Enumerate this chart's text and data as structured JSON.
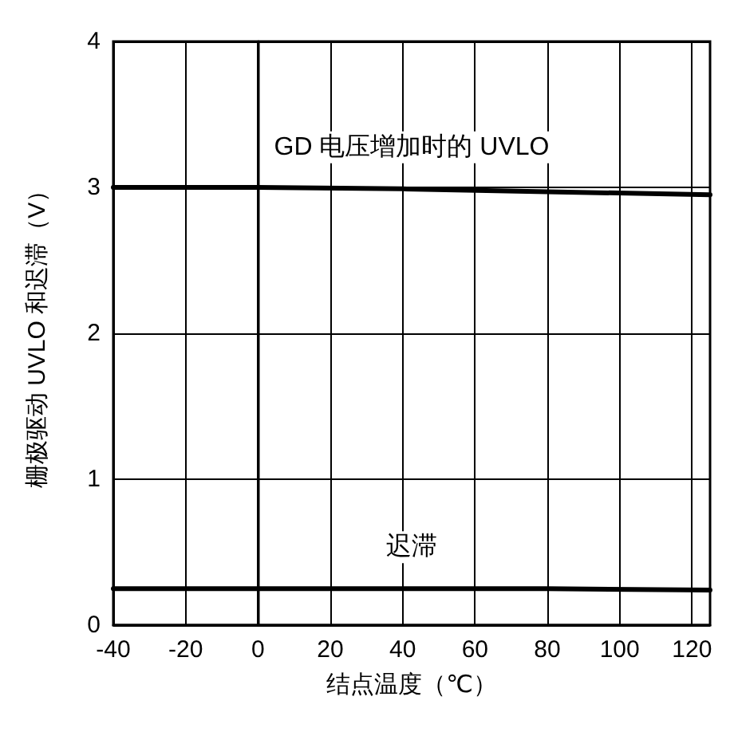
{
  "chart_data": {
    "type": "line",
    "xlabel": "结点温度（℃）",
    "ylabel": "栅极驱动 UVLO 和迟滞（V）",
    "x": [
      -40,
      0,
      40,
      80,
      125
    ],
    "series": [
      {
        "name": "GD 电压增加时的 UVLO",
        "color": "#000000",
        "values": [
          3.0,
          3.0,
          2.99,
          2.97,
          2.95
        ]
      },
      {
        "name": "迟滞",
        "color": "#000000",
        "values": [
          0.25,
          0.25,
          0.25,
          0.25,
          0.24
        ]
      }
    ],
    "xlim": [
      -40,
      125
    ],
    "xticks": [
      -40,
      -20,
      0,
      20,
      40,
      60,
      80,
      100,
      120
    ],
    "ylim": [
      0,
      4
    ],
    "yticks": [
      0,
      1,
      2,
      3,
      4
    ],
    "grid": true,
    "marker": "none",
    "line_style": "solid"
  }
}
